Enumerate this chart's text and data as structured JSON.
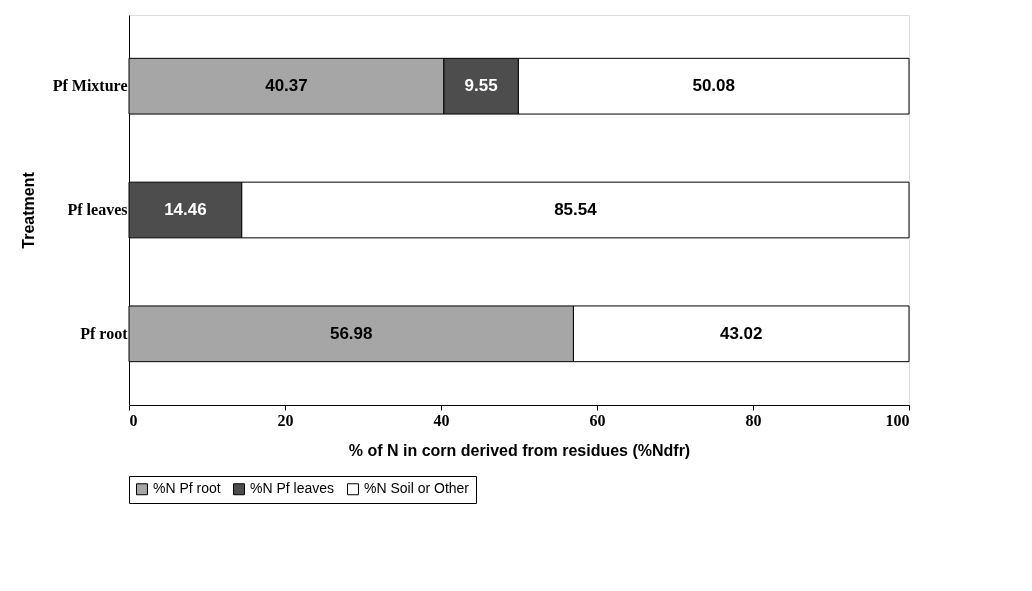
{
  "chart_data": {
    "type": "bar",
    "orientation": "horizontal",
    "stacked": true,
    "data_labels": true,
    "legend": "bottom",
    "grid": false,
    "xlabel": "% of N in corn derived from residues (%Ndfr)",
    "ylabel": "Treatment",
    "categories": [
      "Pf Mixture",
      "Pf leaves",
      "Pf root"
    ],
    "xlim": [
      0,
      100
    ],
    "xticks": [
      0,
      20,
      40,
      60,
      80,
      100
    ],
    "series": [
      {
        "name": "%N Pf root",
        "color": "#a6a6a6",
        "values": [
          40.37,
          null,
          56.98
        ]
      },
      {
        "name": "%N Pf leaves",
        "color": "#4d4d4d",
        "values": [
          9.55,
          14.46,
          null
        ]
      },
      {
        "name": "%N Soil or Other",
        "color": "#ffffff",
        "values": [
          50.08,
          85.54,
          43.02
        ]
      }
    ]
  }
}
